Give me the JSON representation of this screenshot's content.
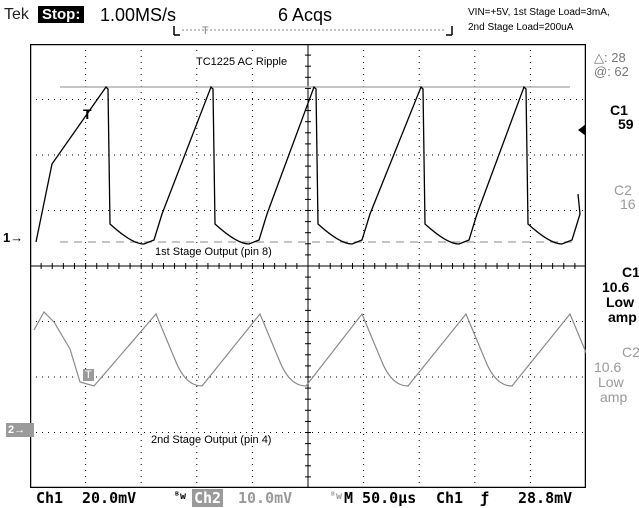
{
  "header": {
    "brand": "Tek",
    "run_state": "Stop:",
    "sample_rate": "1.00MS/s",
    "acquisitions": "6 Acqs",
    "conditions_line1": "VIN=+5V, 1st Stage Load=3mA,",
    "conditions_line2": "2nd Stage Load=200uA"
  },
  "waveform": {
    "title": "TC1225 AC Ripple",
    "ch1_label": "1st Stage Output (pin 8)",
    "ch2_label": "2nd Stage Output (pin 4)",
    "ch1_marker": "1→",
    "ch2_marker": "2→",
    "cursor_t1": "T",
    "cursor_t2": "T"
  },
  "right_panel": {
    "delta": "△: 28",
    "at": "@: 62",
    "c1": "C1",
    "c1_value": "59",
    "c2": "C2",
    "c2_value": "16",
    "c1_freq_label": "C1",
    "c1_freq": "10.6",
    "c1_low": "Low",
    "c1_amp": "amp",
    "c2_freq_label": "C2",
    "c2_freq": "10.6",
    "c2_low": "Low",
    "c2_amp": "amp"
  },
  "footer": {
    "ch1": "Ch1",
    "ch1_scale": "20.0mV",
    "ch1_bw": "ᴮw",
    "ch2": "Ch2",
    "ch2_scale": "10.0mV",
    "ch2_bw": "ᴮw",
    "timebase": "M 50.0µs",
    "trigger_src": "Ch1",
    "trigger_slope": "ƒ",
    "trigger_level": "28.8mV"
  },
  "colors": {
    "trace1": "#000000",
    "trace2": "#8a8a8a",
    "grid": "#000000",
    "ref_line": "#b0b0b0"
  }
}
